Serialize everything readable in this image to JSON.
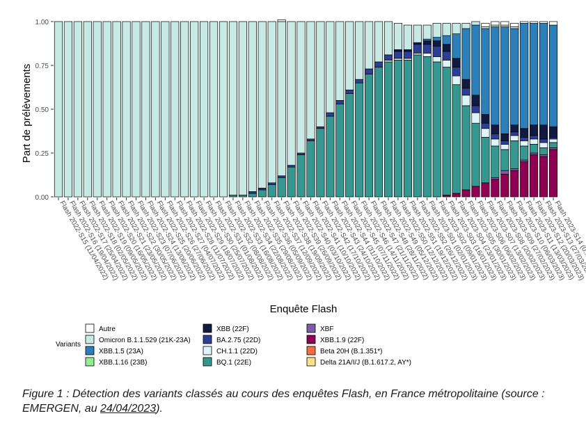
{
  "chart_data": {
    "type": "stacked-bar",
    "title": "",
    "xlabel": "Enquête Flash",
    "ylabel": "Part de prélèvements",
    "ylim": [
      0,
      1
    ],
    "yticks": [
      "0.00",
      "0.25",
      "0.50",
      "0.75",
      "1.00"
    ],
    "legend_title": "Variants",
    "legend_position": "bottom",
    "categories": [
      "Flash 2022-S15 (11/04/2022)",
      "Flash 2022-S16 (19/04/2022)",
      "Flash 2022-S17 (25/04/2022)",
      "Flash 2022-S18 (02/05/2022)",
      "Flash 2022-S19 (09/05/2022)",
      "Flash 2022-S20 (16/05/2022)",
      "Flash 2022-S21 (23/05/2022)",
      "Flash 2022-S22 (30/05/2022)",
      "Flash 2022-S23 (07/06/2022)",
      "Flash 2022-S24 (13/06/2022)",
      "Flash 2022-S25 (20/06/2022)",
      "Flash 2022-S26 (27/06/2022)",
      "Flash 2022-S27 (04/07/2022)",
      "Flash 2022-S28 (11/07/2022)",
      "Flash 2022-S29 (18/07/2022)",
      "Flash 2022-S30 (25/07/2022)",
      "Flash 2022-S31 (01/08/2022)",
      "Flash 2022-S32 (08/08/2022)",
      "Flash 2022-S33 (16/08/2022)",
      "Flash 2022-S34 (22/08/2022)",
      "Flash 2022-S35 (29/08/2022)",
      "Flash 2022-S36 (05/09/2022)",
      "Flash 2022-S37 (12/09/2022)",
      "Flash 2022-S38 (19/09/2022)",
      "Flash 2022-S39 (26/09/2022)",
      "Flash 2022-S40 (03/10/2022)",
      "Flash 2022-S41 (10/10/2022)",
      "Flash 2022-S42 (17/10/2022)",
      "Flash 2022-S43 (24/10/2022)",
      "Flash 2022-S44 (31/10/2022)",
      "Flash 2022-S45 (07/11/2022)",
      "Flash 2022-S46 (14/11/2022)",
      "Flash 2022-S47 (21/11/2022)",
      "Flash 2022-S48 (28/11/2022)",
      "Flash 2022-S49 (05/12/2022)",
      "Flash 2022-S50 (12/12/2022)",
      "Flash 2022-S51 (19/12/2022)",
      "Flash 2022-S52 (26/12/2022)",
      "Flash 2023-S01 (02/01/2023)",
      "Flash 2023-S02 (09/01/2023)",
      "Flash 2023-S03 (16/01/2023)",
      "Flash 2023-S04 (23/01/2023)",
      "Flash 2023-S05 (30/01/2023)",
      "Flash 2023-S06 (06/02/2023)",
      "Flash 2023-S07 (13/02/2023)",
      "Flash 2023-S08 (20/02/2023)",
      "Flash 2023-S09 (27/02/2023)",
      "Flash 2023-S10 (06/03/2023)",
      "Flash 2023-S11 (13/03/2023)",
      "Flash 2023-S12 (20/03/2023)",
      "Flash 2023-S13 (27/03/2023)",
      "Flash 2023-S14 (0..."
    ],
    "series": [
      {
        "name": "XBB.1.9 (22F)",
        "color": "#8E0152",
        "values": [
          0,
          0,
          0,
          0,
          0,
          0,
          0,
          0,
          0,
          0,
          0,
          0,
          0,
          0,
          0,
          0,
          0,
          0,
          0,
          0,
          0,
          0,
          0,
          0,
          0,
          0,
          0,
          0,
          0,
          0,
          0,
          0,
          0,
          0,
          0,
          0,
          0,
          0,
          0,
          0,
          0.01,
          0.02,
          0.04,
          0.06,
          0.08,
          0.1,
          0.13,
          0.15,
          0.2,
          0.24,
          0.23,
          0.27
        ]
      },
      {
        "name": "XBF",
        "color": "#7B5EA7",
        "values": [
          0,
          0,
          0,
          0,
          0,
          0,
          0,
          0,
          0,
          0,
          0,
          0,
          0,
          0,
          0,
          0,
          0,
          0,
          0,
          0,
          0,
          0,
          0,
          0,
          0,
          0,
          0,
          0,
          0,
          0,
          0,
          0,
          0,
          0,
          0,
          0,
          0,
          0,
          0,
          0,
          0,
          0,
          0,
          0,
          0,
          0.01,
          0.02,
          0.01,
          0.01,
          0.01,
          0.01,
          0.01
        ]
      },
      {
        "name": "BQ.1 (22E)",
        "color": "#35978F",
        "values": [
          0,
          0,
          0,
          0,
          0,
          0,
          0,
          0,
          0,
          0,
          0,
          0,
          0,
          0,
          0,
          0,
          0,
          0,
          0.01,
          0.01,
          0.02,
          0.04,
          0.07,
          0.11,
          0.17,
          0.24,
          0.32,
          0.39,
          0.46,
          0.53,
          0.59,
          0.65,
          0.7,
          0.74,
          0.77,
          0.78,
          0.78,
          0.81,
          0.8,
          0.77,
          0.73,
          0.62,
          0.48,
          0.36,
          0.26,
          0.18,
          0.12,
          0.16,
          0.08,
          0.05,
          0.04,
          0.03
        ]
      },
      {
        "name": "CH.1.1 (22D)",
        "color": "#E0F3F8",
        "values": [
          0,
          0,
          0,
          0,
          0,
          0,
          0,
          0,
          0,
          0,
          0,
          0,
          0,
          0,
          0,
          0,
          0,
          0,
          0,
          0,
          0,
          0,
          0,
          0,
          0,
          0,
          0,
          0,
          0,
          0,
          0,
          0,
          0,
          0,
          0.01,
          0.01,
          0.01,
          0.01,
          0.02,
          0.03,
          0.04,
          0.05,
          0.06,
          0.06,
          0.05,
          0.04,
          0.03,
          0.03,
          0.03,
          0.03,
          0.03,
          0.02
        ]
      },
      {
        "name": "BA.2.75 (22D)",
        "color": "#2C3E95",
        "values": [
          0,
          0,
          0,
          0,
          0,
          0,
          0,
          0,
          0,
          0,
          0,
          0,
          0,
          0,
          0,
          0,
          0,
          0,
          0,
          0,
          0.01,
          0.01,
          0.01,
          0.01,
          0.01,
          0.01,
          0.01,
          0.01,
          0.02,
          0.02,
          0.02,
          0.02,
          0.03,
          0.03,
          0.03,
          0.04,
          0.04,
          0.05,
          0.05,
          0.06,
          0.05,
          0.05,
          0.04,
          0.04,
          0.03,
          0.03,
          0.02,
          0.02,
          0.02,
          0.02,
          0.02,
          0.01
        ]
      },
      {
        "name": "XBB (22F)",
        "color": "#111A40",
        "values": [
          0,
          0,
          0,
          0,
          0,
          0,
          0,
          0,
          0,
          0,
          0,
          0,
          0,
          0,
          0,
          0,
          0,
          0,
          0,
          0,
          0,
          0,
          0,
          0,
          0,
          0,
          0,
          0,
          0,
          0,
          0,
          0,
          0,
          0,
          0,
          0.01,
          0.01,
          0.01,
          0.02,
          0.03,
          0.04,
          0.05,
          0.05,
          0.06,
          0.05,
          0.05,
          0.04,
          0.04,
          0.05,
          0.06,
          0.08,
          0.06
        ]
      },
      {
        "name": "XBB.1.5 (23A)",
        "color": "#2C7FB8",
        "values": [
          0,
          0,
          0,
          0,
          0,
          0,
          0,
          0,
          0,
          0,
          0,
          0,
          0,
          0,
          0,
          0,
          0,
          0,
          0,
          0,
          0,
          0,
          0,
          0,
          0,
          0,
          0,
          0,
          0,
          0,
          0,
          0,
          0,
          0,
          0,
          0,
          0,
          0,
          0.01,
          0.02,
          0.05,
          0.14,
          0.29,
          0.4,
          0.49,
          0.56,
          0.61,
          0.55,
          0.6,
          0.58,
          0.58,
          0.58
        ]
      },
      {
        "name": "Omicron B.1.1.529 (21K-23A)",
        "color": "#C7EAE5",
        "values": [
          1,
          1,
          1,
          1,
          1,
          1,
          1,
          1,
          1,
          1,
          1,
          1,
          1,
          1,
          1,
          1,
          1,
          1,
          0.99,
          0.99,
          0.97,
          0.95,
          0.92,
          0.88,
          0.82,
          0.75,
          0.67,
          0.6,
          0.52,
          0.45,
          0.39,
          0.33,
          0.27,
          0.23,
          0.19,
          0.15,
          0.14,
          0.1,
          0.08,
          0.08,
          0.07,
          0.06,
          0.03,
          0.02,
          0.01,
          0.01,
          0.01,
          0.01,
          0.0,
          0.0,
          0.0,
          0.0
        ]
      },
      {
        "name": "Autre",
        "color": "#FFFFFF",
        "values": [
          0,
          0,
          0,
          0,
          0,
          0,
          0,
          0,
          0,
          0,
          0,
          0,
          0,
          0,
          0,
          0,
          0,
          0,
          0,
          0,
          0,
          0,
          0,
          0.01,
          0,
          0,
          0,
          0,
          0,
          0,
          0,
          0,
          0,
          0,
          0,
          0,
          0,
          0,
          0,
          0,
          0,
          0,
          0,
          0,
          0.02,
          0.02,
          0.02,
          0.02,
          0.01,
          0.01,
          0.01,
          0.02
        ]
      }
    ],
    "legend_items": [
      {
        "name": "Autre",
        "color": "#FFFFFF"
      },
      {
        "name": "Omicron B.1.1.529 (21K-23A)",
        "color": "#C7EAE5"
      },
      {
        "name": "XBB.1.5 (23A)",
        "color": "#2C7FB8"
      },
      {
        "name": "XBB.1.16 (23B)",
        "color": "#90EE90"
      },
      {
        "name": "XBB (22F)",
        "color": "#111A40"
      },
      {
        "name": "BA.2.75 (22D)",
        "color": "#2C3E95"
      },
      {
        "name": "CH.1.1 (22D)",
        "color": "#E0F3F8"
      },
      {
        "name": "BQ.1 (22E)",
        "color": "#35978F"
      },
      {
        "name": "XBF",
        "color": "#7B5EA7"
      },
      {
        "name": "XBB.1.9 (22F)",
        "color": "#8E0152"
      },
      {
        "name": "Beta 20H (B.1.351*)",
        "color": "#F46D43"
      },
      {
        "name": "Delta 21A/I/J (B.1.617.2, AY*)",
        "color": "#FEE08B"
      }
    ]
  },
  "caption": {
    "text": "Figure 1 : Détection des variants classés au cours des enquêtes Flash, en France métropolitaine (source : EMERGEN, au ",
    "date": "24/04/2023",
    "end": ")."
  }
}
